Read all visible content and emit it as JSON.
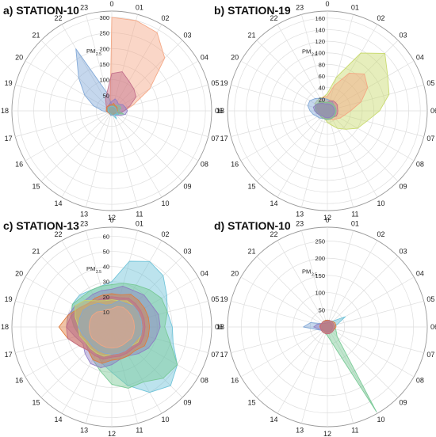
{
  "chart_data": [
    {
      "type": "polar-area",
      "panel_label": "a)",
      "title": "STATION-10",
      "unit_label": "PM",
      "unit_sub": "2.5",
      "angular_labels": [
        "0",
        "01",
        "02",
        "03",
        "04",
        "05",
        "06",
        "07",
        "08",
        "09",
        "10",
        "11",
        "12",
        "13",
        "14",
        "15",
        "16",
        "17",
        "18",
        "19",
        "20",
        "21",
        "22",
        "23"
      ],
      "radial_ticks": [
        50,
        100,
        150,
        200,
        250,
        300
      ],
      "rmax": 320,
      "series": [
        {
          "color": "#f4a582",
          "values": [
            300,
            300,
            290,
            240,
            140,
            70,
            40,
            30,
            20,
            18,
            15,
            15,
            14,
            12,
            10,
            10,
            10,
            12,
            10,
            10,
            12,
            15,
            20,
            20
          ]
        },
        {
          "color": "#7fa6d6",
          "values": [
            20,
            15,
            15,
            12,
            12,
            12,
            15,
            12,
            12,
            10,
            10,
            12,
            15,
            15,
            12,
            10,
            10,
            15,
            30,
            60,
            100,
            150,
            230,
            60
          ]
        },
        {
          "color": "#c16d8a",
          "values": [
            120,
            130,
            110,
            100,
            90,
            60,
            40,
            25,
            15,
            12,
            10,
            10,
            10,
            12,
            10,
            10,
            10,
            12,
            15,
            15,
            20,
            25,
            40,
            60
          ]
        },
        {
          "color": "#8e7cc3",
          "values": [
            30,
            40,
            35,
            30,
            40,
            45,
            50,
            45,
            30,
            20,
            15,
            12,
            10,
            12,
            10,
            12,
            12,
            15,
            15,
            15,
            15,
            18,
            20,
            25
          ]
        },
        {
          "color": "#76c893",
          "values": [
            15,
            20,
            20,
            25,
            30,
            30,
            20,
            40,
            20,
            15,
            12,
            10,
            10,
            10,
            10,
            10,
            12,
            12,
            12,
            15,
            15,
            15,
            15,
            15
          ]
        },
        {
          "color": "#e07b39",
          "values": [
            20,
            25,
            20,
            20,
            20,
            18,
            18,
            15,
            15,
            12,
            12,
            12,
            12,
            12,
            12,
            12,
            12,
            15,
            18,
            18,
            20,
            20,
            20,
            20
          ]
        },
        {
          "color": "#6bc2d8",
          "values": [
            15,
            15,
            15,
            15,
            15,
            15,
            15,
            15,
            25,
            15,
            30,
            15,
            12,
            12,
            10,
            10,
            10,
            12,
            12,
            12,
            12,
            15,
            15,
            15
          ]
        }
      ]
    },
    {
      "type": "polar-area",
      "panel_label": "b)",
      "title": "STATION-19",
      "unit_label": "PM",
      "unit_sub": "2.5",
      "angular_labels": [
        "0",
        "01",
        "02",
        "03",
        "04",
        "05",
        "06",
        "07",
        "08",
        "09",
        "10",
        "11",
        "12",
        "13",
        "14",
        "15",
        "16",
        "17",
        "18",
        "19",
        "20",
        "21",
        "22",
        "23"
      ],
      "radial_ticks": [
        20,
        40,
        60,
        80,
        100,
        120,
        140,
        160
      ],
      "rmax": 172,
      "series": [
        {
          "color": "#c7d96b",
          "values": [
            30,
            60,
            115,
            140,
            120,
            110,
            90,
            70,
            60,
            45,
            35,
            25,
            20,
            15,
            12,
            12,
            12,
            15,
            18,
            20,
            25,
            25,
            25,
            25
          ]
        },
        {
          "color": "#f4a582",
          "values": [
            25,
            45,
            75,
            90,
            80,
            60,
            40,
            30,
            25,
            20,
            18,
            15,
            12,
            12,
            12,
            12,
            12,
            15,
            15,
            18,
            20,
            20,
            22,
            25
          ]
        },
        {
          "color": "#7fa6d6",
          "values": [
            20,
            18,
            18,
            15,
            15,
            15,
            15,
            15,
            15,
            15,
            15,
            15,
            15,
            15,
            15,
            18,
            20,
            25,
            30,
            35,
            35,
            30,
            25,
            22
          ]
        },
        {
          "color": "#c16d8a",
          "values": [
            15,
            18,
            20,
            20,
            20,
            18,
            18,
            18,
            18,
            15,
            15,
            15,
            15,
            15,
            15,
            15,
            15,
            18,
            20,
            22,
            22,
            20,
            18,
            15
          ]
        },
        {
          "color": "#76c893",
          "values": [
            15,
            15,
            15,
            15,
            15,
            15,
            15,
            15,
            15,
            15,
            15,
            15,
            15,
            15,
            15,
            15,
            15,
            18,
            20,
            22,
            22,
            20,
            18,
            15
          ]
        },
        {
          "color": "#8e7cc3",
          "values": [
            12,
            12,
            12,
            12,
            12,
            12,
            12,
            12,
            12,
            12,
            12,
            12,
            12,
            12,
            12,
            12,
            15,
            18,
            22,
            25,
            22,
            18,
            15,
            12
          ]
        }
      ]
    },
    {
      "type": "polar-area",
      "panel_label": "c)",
      "title": "STATION-13",
      "unit_label": "PM",
      "unit_sub": "2.5",
      "angular_labels": [
        "0",
        "01",
        "02",
        "03",
        "04",
        "05",
        "06",
        "07",
        "08",
        "09",
        "10",
        "11",
        "12",
        "13",
        "14",
        "15",
        "16",
        "17",
        "18",
        "19",
        "20",
        "21",
        "22",
        "23"
      ],
      "radial_ticks": [
        10,
        20,
        30,
        40,
        50,
        60
      ],
      "rmax": 66,
      "series": [
        {
          "color": "#6bc2d8",
          "values": [
            30,
            45,
            50,
            48,
            42,
            38,
            40,
            42,
            50,
            55,
            50,
            40,
            30,
            25,
            20,
            20,
            20,
            22,
            25,
            28,
            30,
            30,
            28,
            28
          ]
        },
        {
          "color": "#76c893",
          "values": [
            28,
            30,
            32,
            35,
            38,
            38,
            35,
            40,
            50,
            48,
            42,
            42,
            38,
            30,
            25,
            22,
            20,
            22,
            25,
            28,
            30,
            28,
            28,
            28
          ]
        },
        {
          "color": "#8e7cc3",
          "values": [
            25,
            28,
            28,
            30,
            30,
            32,
            32,
            30,
            28,
            25,
            22,
            22,
            25,
            28,
            28,
            25,
            22,
            25,
            30,
            30,
            28,
            25,
            25,
            25
          ]
        },
        {
          "color": "#e07b39",
          "values": [
            22,
            22,
            25,
            25,
            25,
            25,
            25,
            25,
            25,
            22,
            22,
            22,
            22,
            25,
            25,
            22,
            25,
            30,
            35,
            30,
            25,
            22,
            22,
            22
          ]
        },
        {
          "color": "#c16d8a",
          "values": [
            20,
            20,
            22,
            22,
            22,
            22,
            22,
            22,
            22,
            20,
            20,
            20,
            20,
            22,
            22,
            22,
            25,
            30,
            30,
            28,
            25,
            22,
            20,
            20
          ]
        },
        {
          "color": "#c7d96b",
          "values": [
            18,
            18,
            20,
            20,
            20,
            20,
            20,
            20,
            20,
            18,
            18,
            18,
            18,
            20,
            20,
            20,
            20,
            22,
            22,
            25,
            28,
            25,
            20,
            18
          ]
        },
        {
          "color": "#7fa6d6",
          "values": [
            15,
            18,
            18,
            20,
            20,
            20,
            20,
            20,
            18,
            18,
            18,
            18,
            18,
            18,
            18,
            18,
            18,
            20,
            22,
            22,
            22,
            20,
            18,
            15
          ]
        },
        {
          "color": "#f4a582",
          "values": [
            12,
            14,
            15,
            15,
            15,
            15,
            15,
            15,
            15,
            14,
            14,
            14,
            14,
            14,
            14,
            14,
            15,
            15,
            15,
            15,
            15,
            14,
            12,
            12
          ]
        }
      ]
    },
    {
      "type": "polar-area",
      "panel_label": "d)",
      "title": "STATION-10",
      "unit_label": "PM",
      "unit_sub": "2.5",
      "angular_labels": [
        "0",
        "01",
        "02",
        "03",
        "04",
        "05",
        "06",
        "07",
        "08",
        "09",
        "10",
        "11",
        "12",
        "13",
        "14",
        "15",
        "16",
        "17",
        "18",
        "19",
        "20",
        "21",
        "22",
        "23"
      ],
      "radial_ticks": [
        50,
        100,
        150,
        200,
        250
      ],
      "rmax": 290,
      "series": [
        {
          "color": "#76c893",
          "values": [
            20,
            20,
            20,
            20,
            20,
            20,
            20,
            25,
            30,
            40,
            285,
            45,
            25,
            20,
            20,
            20,
            20,
            20,
            20,
            20,
            20,
            20,
            20,
            20
          ]
        },
        {
          "color": "#6bc2d8",
          "values": [
            15,
            15,
            20,
            25,
            60,
            30,
            20,
            20,
            20,
            18,
            20,
            20,
            20,
            15,
            15,
            15,
            15,
            15,
            15,
            15,
            15,
            15,
            15,
            15
          ]
        },
        {
          "color": "#7fa6d6",
          "values": [
            15,
            15,
            15,
            15,
            15,
            15,
            15,
            15,
            15,
            15,
            15,
            15,
            15,
            15,
            15,
            15,
            20,
            30,
            70,
            50,
            20,
            15,
            15,
            15
          ]
        },
        {
          "color": "#8e7cc3",
          "values": [
            12,
            15,
            15,
            15,
            15,
            15,
            15,
            15,
            15,
            15,
            15,
            15,
            15,
            15,
            15,
            15,
            15,
            25,
            40,
            30,
            20,
            15,
            12,
            12
          ]
        },
        {
          "color": "#e07b39",
          "values": [
            20,
            20,
            20,
            22,
            25,
            25,
            25,
            22,
            20,
            20,
            20,
            20,
            20,
            20,
            20,
            20,
            20,
            20,
            22,
            22,
            20,
            20,
            20,
            20
          ]
        },
        {
          "color": "#c16d8a",
          "values": [
            18,
            20,
            20,
            20,
            20,
            20,
            20,
            20,
            20,
            20,
            20,
            20,
            20,
            20,
            20,
            20,
            20,
            20,
            20,
            20,
            20,
            20,
            18,
            18
          ]
        }
      ]
    }
  ]
}
